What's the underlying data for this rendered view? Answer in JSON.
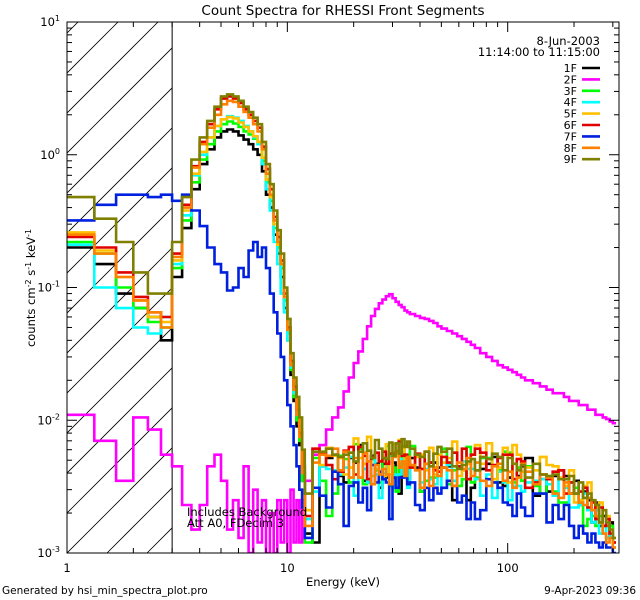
{
  "chart_data": {
    "type": "line",
    "title": "Count Spectra for RHESSI Front Segments",
    "xlabel": "Energy (keV)",
    "ylabel_parts": [
      "counts cm",
      "-2",
      " s",
      "-1",
      " keV",
      "-1"
    ],
    "xscale": "log",
    "yscale": "log",
    "xlim": [
      1.0,
      320.0
    ],
    "ylim": [
      0.001,
      10.0
    ],
    "x_ticks": [
      {
        "value": 1,
        "label": "1"
      },
      {
        "value": 10,
        "label": "10"
      },
      {
        "value": 100,
        "label": "100"
      }
    ],
    "y_ticks": [
      {
        "value": 0.001,
        "base": "10",
        "exp": "-3"
      },
      {
        "value": 0.01,
        "base": "10",
        "exp": "-2"
      },
      {
        "value": 0.1,
        "base": "10",
        "exp": "-1"
      },
      {
        "value": 1,
        "base": "10",
        "exp": "0"
      },
      {
        "value": 10,
        "base": "10",
        "exp": "1"
      }
    ],
    "hatched_region": [
      1.0,
      3.0
    ],
    "date": "8-Jun-2003",
    "time_range": "11:14:00 to 11:15:00",
    "annotation": [
      "Includes Background",
      "Att A0, FDecim 3"
    ],
    "x_edges": [
      1.0,
      1.33,
      1.67,
      2.0,
      2.33,
      2.67,
      3.0,
      3.33,
      3.67,
      4.0,
      4.33,
      4.67,
      5.0,
      5.33,
      5.67,
      6.0,
      6.33,
      6.67,
      7.0,
      7.33,
      7.67,
      8.0,
      8.33,
      8.67,
      9.0,
      9.33,
      9.67,
      10.0,
      10.33,
      10.67,
      11.0,
      11.33,
      11.67,
      12.0,
      13.0,
      14.0,
      15.0,
      16.0,
      17.0,
      18.0,
      19.0,
      20.0,
      21.0,
      22.0,
      23.0,
      24.0,
      25.0,
      26.0,
      27.0,
      28.0,
      29.0,
      30.0,
      31.0,
      32.0,
      33.0,
      34.0,
      35.0,
      36.0,
      38.0,
      40.0,
      42.0,
      44.0,
      46.0,
      48.0,
      50.0,
      53.0,
      56.0,
      59.0,
      62.0,
      65.0,
      68.0,
      71.0,
      75.0,
      80.0,
      85.0,
      90.0,
      95.0,
      100.0,
      105.0,
      110.0,
      115.0,
      120.0,
      130.0,
      140.0,
      150.0,
      160.0,
      170.0,
      180.0,
      190.0,
      200.0,
      210.0,
      220.0,
      230.0,
      240.0,
      250.0,
      260.0,
      270.0,
      280.0,
      290.0,
      300.0,
      310.0
    ],
    "series": [
      {
        "name": "1F",
        "color": "#000000",
        "values": [
          0.2,
          0.15,
          0.09,
          0.07,
          0.06,
          0.04,
          0.12,
          0.28,
          0.55,
          0.85,
          1.1,
          1.35,
          1.5,
          1.55,
          1.5,
          1.4,
          1.3,
          1.2,
          1.1,
          1.0,
          0.75,
          0.5,
          0.4,
          0.25,
          0.18,
          0.12,
          0.07,
          0.04,
          0.022,
          0.014,
          0.009,
          0.0065,
          0.0035,
          0.0014,
          0.0012,
          0.0045,
          0.0052,
          0.0055,
          0.0038,
          0.0034,
          0.0052,
          0.0048,
          0.0065,
          0.0035,
          0.0034,
          0.0054,
          0.0047,
          0.0031,
          0.0047,
          0.0037,
          0.0056,
          0.0048,
          0.0039,
          0.0028,
          0.0047,
          0.0052,
          0.0036,
          0.0052,
          0.0044,
          0.0029,
          0.0047,
          0.0048,
          0.0048,
          0.0044,
          0.0044,
          0.0045,
          0.0025,
          0.0045,
          0.0042,
          0.0025,
          0.0031,
          0.0042,
          0.0043,
          0.0047,
          0.0053,
          0.0034,
          0.0032,
          0.0037,
          0.0036,
          0.0038,
          0.0045,
          0.0052,
          0.0027,
          0.0036,
          0.0029,
          0.0038,
          0.0042,
          0.0038,
          0.0028,
          0.0035,
          0.0023,
          0.0029,
          0.0025,
          0.0017,
          0.0024,
          0.0016,
          0.0019,
          0.0013,
          0.0017,
          0.0012
        ]
      },
      {
        "name": "2F",
        "color": "#ff00ff",
        "values": [
          0.011,
          0.007,
          0.0035,
          0.0105,
          0.0085,
          0.0055,
          0.0045,
          0.0023,
          0.0015,
          0.0023,
          0.0045,
          0.0055,
          0.0035,
          0.0015,
          0.0025,
          0.0013,
          0.0045,
          0.001,
          0.003,
          0.0012,
          0.0025,
          0.001,
          0.002,
          0.001,
          0.0025,
          0.0012,
          0.0025,
          0.001,
          0.003,
          0.0012,
          0.0025,
          0.0012,
          0.0025,
          0.0035,
          0.0055,
          0.0065,
          0.0085,
          0.0105,
          0.0125,
          0.0165,
          0.021,
          0.027,
          0.033,
          0.041,
          0.051,
          0.061,
          0.069,
          0.076,
          0.081,
          0.086,
          0.089,
          0.083,
          0.078,
          0.074,
          0.071,
          0.067,
          0.065,
          0.063,
          0.061,
          0.059,
          0.058,
          0.056,
          0.054,
          0.051,
          0.049,
          0.047,
          0.045,
          0.043,
          0.041,
          0.039,
          0.037,
          0.035,
          0.032,
          0.03,
          0.028,
          0.026,
          0.025,
          0.024,
          0.023,
          0.022,
          0.021,
          0.02,
          0.019,
          0.018,
          0.017,
          0.016,
          0.016,
          0.015,
          0.014,
          0.014,
          0.013,
          0.013,
          0.012,
          0.012,
          0.011,
          0.011,
          0.0105,
          0.0102,
          0.0098,
          0.0095
        ]
      },
      {
        "name": "3F",
        "color": "#00ff00",
        "values": [
          0.22,
          0.18,
          0.1,
          0.07,
          0.055,
          0.05,
          0.14,
          0.32,
          0.62,
          0.92,
          1.2,
          1.5,
          1.7,
          1.78,
          1.72,
          1.62,
          1.5,
          1.42,
          1.32,
          1.2,
          0.9,
          0.62,
          0.45,
          0.28,
          0.2,
          0.14,
          0.08,
          0.045,
          0.024,
          0.015,
          0.01,
          0.007,
          0.0035,
          0.0012,
          0.0052,
          0.0035,
          0.0019,
          0.0028,
          0.0054,
          0.0051,
          0.0034,
          0.0066,
          0.0061,
          0.0033,
          0.0036,
          0.0051,
          0.0042,
          0.0034,
          0.0051,
          0.0064,
          0.0032,
          0.0044,
          0.0029,
          0.0046,
          0.0064,
          0.0043,
          0.0054,
          0.0064,
          0.0055,
          0.0029,
          0.0035,
          0.0037,
          0.0037,
          0.0038,
          0.0061,
          0.0033,
          0.0042,
          0.0032,
          0.0036,
          0.0063,
          0.0034,
          0.0037,
          0.0052,
          0.0052,
          0.0034,
          0.0042,
          0.0058,
          0.0057,
          0.0034,
          0.0044,
          0.0035,
          0.0045,
          0.0032,
          0.0028,
          0.0038,
          0.0029,
          0.0024,
          0.0024,
          0.0034,
          0.0031,
          0.0025,
          0.0016,
          0.0018,
          0.0019,
          0.0016,
          0.0019,
          0.0016,
          0.0016,
          0.0016,
          0.0012
        ]
      },
      {
        "name": "4F",
        "color": "#00ffff",
        "values": [
          0.21,
          0.1,
          0.07,
          0.05,
          0.045,
          0.06,
          0.15,
          0.35,
          0.7,
          1.0,
          1.35,
          1.65,
          1.85,
          1.95,
          1.9,
          1.8,
          1.65,
          1.5,
          1.35,
          1.2,
          0.85,
          0.55,
          0.38,
          0.22,
          0.15,
          0.09,
          0.065,
          0.04,
          0.025,
          0.016,
          0.011,
          0.008,
          0.004,
          0.0018,
          0.0029,
          0.0045,
          0.0043,
          0.0042,
          0.0039,
          0.0044,
          0.0053,
          0.0027,
          0.0058,
          0.0043,
          0.0034,
          0.0053,
          0.0039,
          0.0026,
          0.004,
          0.0045,
          0.0054,
          0.0031,
          0.0039,
          0.0039,
          0.0051,
          0.0047,
          0.0031,
          0.0044,
          0.0055,
          0.0034,
          0.0043,
          0.0036,
          0.0033,
          0.0038,
          0.0031,
          0.0046,
          0.0035,
          0.0038,
          0.0049,
          0.0043,
          0.0043,
          0.0036,
          0.0027,
          0.0039,
          0.0026,
          0.0041,
          0.0034,
          0.0025,
          0.0032,
          0.0032,
          0.0029,
          0.0034,
          0.0035,
          0.0036,
          0.0033,
          0.0027,
          0.0036,
          0.0031,
          0.0022,
          0.0022,
          0.0023,
          0.0028,
          0.0021,
          0.0017,
          0.0021,
          0.0014,
          0.0016,
          0.0013,
          0.0015,
          0.0011
        ]
      },
      {
        "name": "5F",
        "color": "#ffc000",
        "values": [
          0.26,
          0.19,
          0.12,
          0.08,
          0.06,
          0.055,
          0.16,
          0.38,
          0.72,
          1.05,
          1.35,
          1.65,
          1.85,
          1.92,
          1.88,
          1.75,
          1.62,
          1.5,
          1.38,
          1.25,
          0.95,
          0.65,
          0.48,
          0.3,
          0.21,
          0.15,
          0.085,
          0.05,
          0.028,
          0.018,
          0.012,
          0.0085,
          0.0045,
          0.0021,
          0.0061,
          0.0046,
          0.0062,
          0.0054,
          0.0052,
          0.0039,
          0.0044,
          0.0073,
          0.0052,
          0.0047,
          0.0075,
          0.0038,
          0.0043,
          0.0041,
          0.0038,
          0.0066,
          0.0039,
          0.0066,
          0.0054,
          0.0071,
          0.0062,
          0.0039,
          0.0045,
          0.0044,
          0.0053,
          0.0055,
          0.0042,
          0.0062,
          0.0039,
          0.0055,
          0.0048,
          0.0052,
          0.0069,
          0.0038,
          0.0042,
          0.0047,
          0.0055,
          0.0065,
          0.0047,
          0.0067,
          0.0036,
          0.0044,
          0.0062,
          0.0034,
          0.0065,
          0.0055,
          0.0041,
          0.0044,
          0.0042,
          0.0053,
          0.0046,
          0.0045,
          0.0037,
          0.0032,
          0.0042,
          0.0024,
          0.0025,
          0.0032,
          0.0034,
          0.0021,
          0.0022,
          0.0024,
          0.0021,
          0.0019,
          0.0015,
          0.0012
        ]
      },
      {
        "name": "6F",
        "color": "#e00000",
        "values": [
          0.24,
          0.2,
          0.13,
          0.085,
          0.065,
          0.06,
          0.18,
          0.42,
          0.82,
          1.25,
          1.7,
          2.2,
          2.65,
          2.75,
          2.65,
          2.45,
          2.2,
          2.0,
          1.8,
          1.6,
          1.15,
          0.78,
          0.55,
          0.34,
          0.24,
          0.16,
          0.09,
          0.05,
          0.028,
          0.018,
          0.012,
          0.008,
          0.0045,
          0.0019,
          0.0061,
          0.0056,
          0.0046,
          0.0036,
          0.0041,
          0.0059,
          0.0063,
          0.0039,
          0.0063,
          0.0054,
          0.0036,
          0.0053,
          0.0057,
          0.0049,
          0.0058,
          0.0047,
          0.0056,
          0.0056,
          0.0058,
          0.0069,
          0.0054,
          0.0055,
          0.0047,
          0.0044,
          0.0056,
          0.0043,
          0.0058,
          0.0048,
          0.0042,
          0.0041,
          0.0053,
          0.0048,
          0.0057,
          0.0045,
          0.0061,
          0.0036,
          0.0055,
          0.0061,
          0.0057,
          0.0042,
          0.0046,
          0.0052,
          0.0055,
          0.0055,
          0.0036,
          0.0051,
          0.0049,
          0.0031,
          0.0034,
          0.0039,
          0.0036,
          0.0041,
          0.0042,
          0.0028,
          0.0034,
          0.0028,
          0.0029,
          0.0031,
          0.0022,
          0.0024,
          0.0018,
          0.0022,
          0.0016,
          0.0018,
          0.0014,
          0.0012
        ]
      },
      {
        "name": "7F",
        "color": "#0020e0",
        "values": [
          0.32,
          0.42,
          0.5,
          0.5,
          0.48,
          0.5,
          0.45,
          0.5,
          0.38,
          0.29,
          0.2,
          0.15,
          0.13,
          0.095,
          0.1,
          0.14,
          0.12,
          0.19,
          0.22,
          0.17,
          0.2,
          0.14,
          0.09,
          0.065,
          0.045,
          0.03,
          0.02,
          0.013,
          0.009,
          0.0065,
          0.0045,
          0.003,
          0.0022,
          0.0013,
          0.0031,
          0.0027,
          0.0022,
          0.0041,
          0.0033,
          0.0016,
          0.0032,
          0.0034,
          0.0024,
          0.0031,
          0.0021,
          0.0046,
          0.0034,
          0.0041,
          0.0036,
          0.0034,
          0.0018,
          0.0037,
          0.0031,
          0.0037,
          0.0037,
          0.0038,
          0.0033,
          0.0034,
          0.0023,
          0.0021,
          0.0031,
          0.0025,
          0.0031,
          0.0028,
          0.0031,
          0.0035,
          0.0032,
          0.0024,
          0.0027,
          0.0018,
          0.0024,
          0.0018,
          0.0021,
          0.0036,
          0.0034,
          0.0031,
          0.0024,
          0.0023,
          0.0019,
          0.0028,
          0.0022,
          0.0019,
          0.0028,
          0.0028,
          0.0017,
          0.0023,
          0.0018,
          0.0023,
          0.0016,
          0.0013,
          0.0016,
          0.0014,
          0.0012,
          0.0014,
          0.0012,
          0.0011,
          0.0012,
          0.0011,
          0.0011,
          0.001
        ]
      },
      {
        "name": "8F",
        "color": "#ff8000",
        "values": [
          0.25,
          0.18,
          0.12,
          0.08,
          0.065,
          0.05,
          0.17,
          0.4,
          0.8,
          1.2,
          1.6,
          2.0,
          2.4,
          2.55,
          2.5,
          2.3,
          2.1,
          1.9,
          1.7,
          1.5,
          1.1,
          0.72,
          0.5,
          0.32,
          0.22,
          0.15,
          0.085,
          0.048,
          0.026,
          0.017,
          0.011,
          0.0075,
          0.004,
          0.0016,
          0.0048,
          0.0055,
          0.0054,
          0.0061,
          0.0042,
          0.0058,
          0.0037,
          0.0052,
          0.0037,
          0.0057,
          0.0049,
          0.0033,
          0.0046,
          0.0039,
          0.0043,
          0.0039,
          0.0033,
          0.0053,
          0.0057,
          0.0044,
          0.0049,
          0.0038,
          0.0053,
          0.0046,
          0.0042,
          0.0031,
          0.0047,
          0.0032,
          0.0044,
          0.0038,
          0.0044,
          0.0042,
          0.0032,
          0.0048,
          0.0043,
          0.0052,
          0.0038,
          0.0048,
          0.0035,
          0.0032,
          0.0045,
          0.0047,
          0.0035,
          0.0041,
          0.0031,
          0.0037,
          0.0047,
          0.0041,
          0.0033,
          0.0039,
          0.0037,
          0.0028,
          0.0026,
          0.0034,
          0.0028,
          0.0028,
          0.0024,
          0.0023,
          0.0026,
          0.0021,
          0.0019,
          0.0017,
          0.0014,
          0.0012,
          0.0013,
          0.0011
        ]
      },
      {
        "name": "9F",
        "color": "#808000",
        "values": [
          0.48,
          0.33,
          0.22,
          0.13,
          0.09,
          0.09,
          0.22,
          0.48,
          0.92,
          1.35,
          1.8,
          2.3,
          2.75,
          2.85,
          2.75,
          2.55,
          2.3,
          2.1,
          1.9,
          1.7,
          1.25,
          0.85,
          0.6,
          0.38,
          0.27,
          0.18,
          0.1,
          0.058,
          0.032,
          0.021,
          0.015,
          0.0105,
          0.006,
          0.0028,
          0.0058,
          0.0058,
          0.0061,
          0.0055,
          0.0053,
          0.0055,
          0.0057,
          0.0049,
          0.0058,
          0.0067,
          0.0059,
          0.0052,
          0.0071,
          0.0061,
          0.0052,
          0.0051,
          0.0068,
          0.0054,
          0.0067,
          0.0056,
          0.0072,
          0.0063,
          0.0069,
          0.0061,
          0.0055,
          0.0053,
          0.0058,
          0.0045,
          0.0056,
          0.0063,
          0.0058,
          0.0061,
          0.0045,
          0.0043,
          0.0046,
          0.0049,
          0.0051,
          0.0042,
          0.0053,
          0.0051,
          0.0056,
          0.0053,
          0.0042,
          0.0052,
          0.0047,
          0.0042,
          0.0046,
          0.0037,
          0.0047,
          0.0039,
          0.0038,
          0.0039,
          0.0036,
          0.0036,
          0.0038,
          0.0028,
          0.0034,
          0.0026,
          0.0028,
          0.0025,
          0.0023,
          0.0017,
          0.0021,
          0.0017,
          0.0015,
          0.0013
        ]
      }
    ]
  },
  "footer": {
    "generated_by": "Generated by hsi_min_spectra_plot.pro",
    "timestamp": "9-Apr-2023 09:36"
  }
}
